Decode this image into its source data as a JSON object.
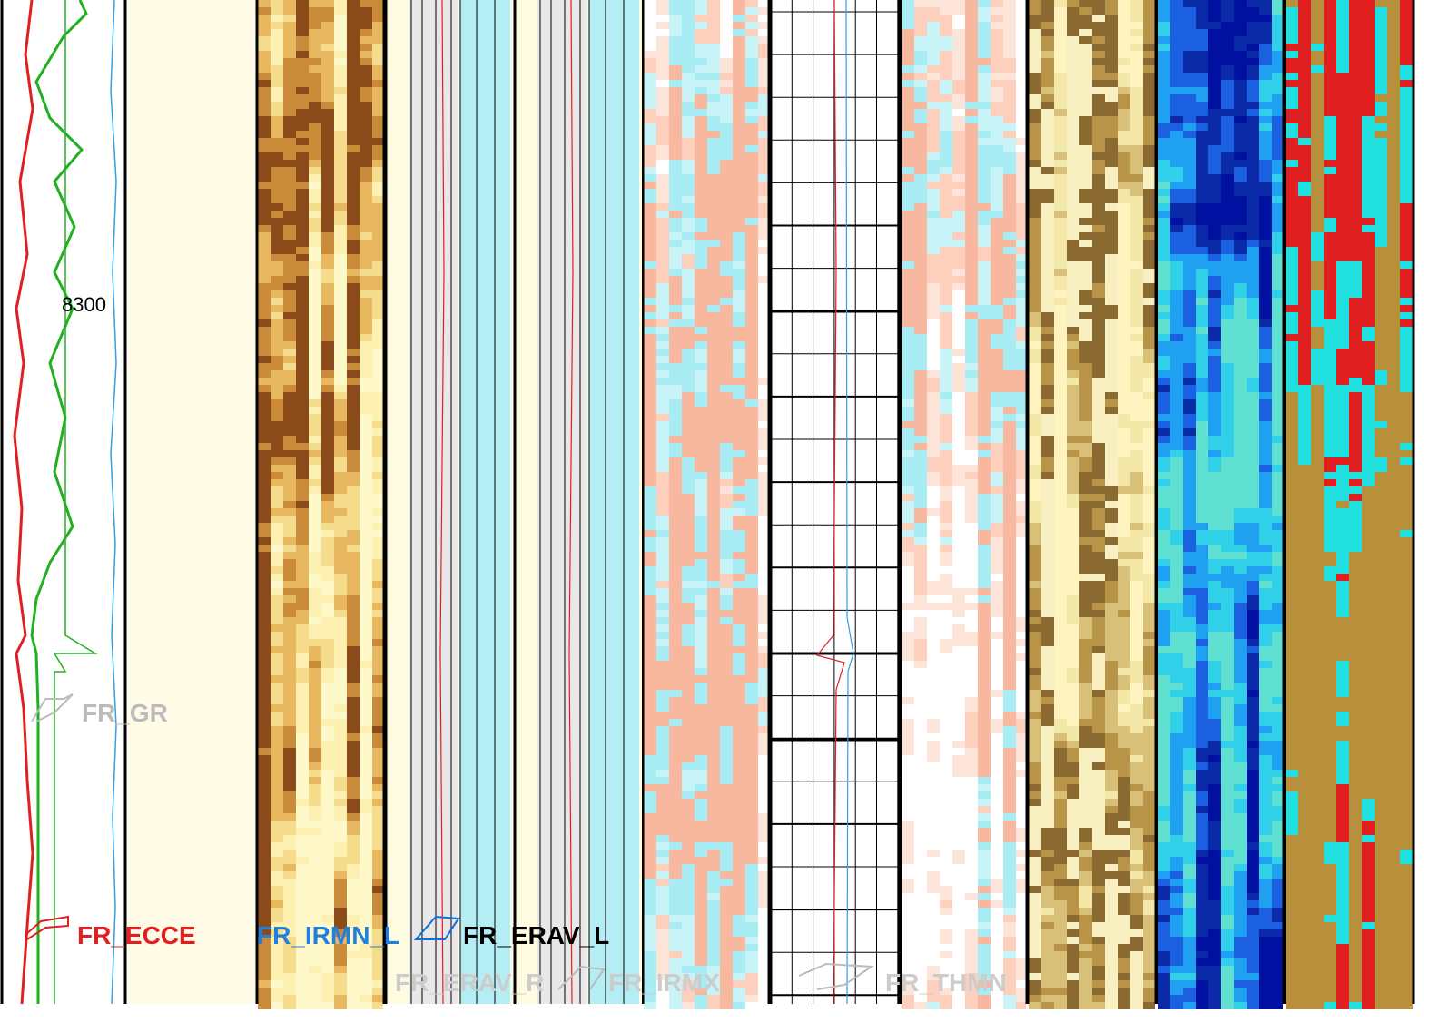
{
  "depth_label": "8300",
  "curve_labels": {
    "gr": "FR_GR",
    "ecce": "FR_ECCE",
    "irmn_l": "FR_IRMN_L",
    "erav_l": "FR_ERAV_L",
    "erav_r": "FR_ERAV_R",
    "irmx": "FR_IRMX",
    "thmn": "FR_THMN"
  }
}
